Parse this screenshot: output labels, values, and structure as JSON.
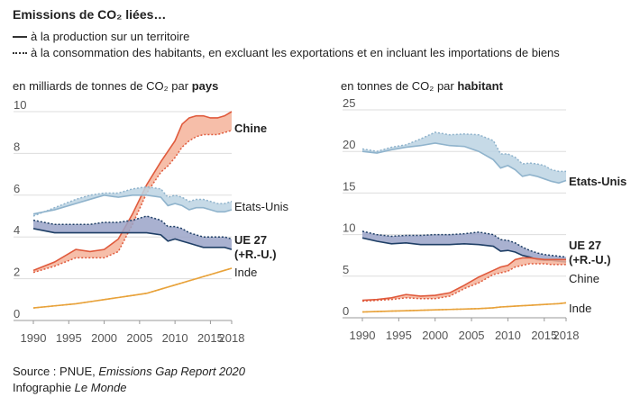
{
  "title": "Emissions de CO₂ liées…",
  "legend": {
    "solid": "à la production sur un territoire",
    "dotted": "à la consommation des habitants, en excluant les exportations et en incluant les importations de biens"
  },
  "source": {
    "prefix": "Source : PNUE, ",
    "report": "Emissions Gap Report 2020",
    "credit_prefix": "Infographie ",
    "credit_name": "Le Monde"
  },
  "colors": {
    "china": "#e05a3c",
    "china_fill": "#f4b39a",
    "usa": "#8fb3cc",
    "usa_fill": "#bcd3e3",
    "eu": "#1f3f66",
    "eu_fill": "#9aa3c8",
    "india": "#e8a23a",
    "india_fill": "#f5cf8e",
    "grid": "#dddddd",
    "axis": "#999999",
    "tick": "#555555"
  },
  "chart_data": [
    {
      "type": "area",
      "subtitle_prefix": "en milliards de tonnes de CO₂ par ",
      "subtitle_bold": "pays",
      "xlim": [
        1990,
        2018
      ],
      "ylim": [
        0,
        10
      ],
      "x_ticks": [
        "1990",
        "1995",
        "2000",
        "2005",
        "2010",
        "2015",
        "2018"
      ],
      "y_ticks": [
        "0",
        "2",
        "4",
        "6",
        "8",
        "10"
      ],
      "x": [
        1990,
        1993,
        1996,
        1998,
        2000,
        2002,
        2004,
        2006,
        2008,
        2009,
        2010,
        2011,
        2012,
        2013,
        2014,
        2015,
        2016,
        2017,
        2018
      ],
      "series": [
        {
          "key": "china",
          "name": "Chine",
          "bold": true,
          "production": [
            2.4,
            2.8,
            3.4,
            3.3,
            3.4,
            3.9,
            5.1,
            6.5,
            7.6,
            8.1,
            8.6,
            9.4,
            9.7,
            9.8,
            9.8,
            9.7,
            9.7,
            9.8,
            10.0
          ],
          "consumption": [
            2.3,
            2.6,
            3.0,
            3.0,
            3.0,
            3.3,
            4.6,
            6.1,
            7.1,
            7.4,
            7.8,
            8.3,
            8.6,
            8.8,
            8.9,
            8.9,
            8.9,
            9.0,
            9.1
          ]
        },
        {
          "key": "usa",
          "name": "Etats-Unis",
          "bold": false,
          "production": [
            5.1,
            5.3,
            5.6,
            5.8,
            6.0,
            5.9,
            6.0,
            6.0,
            5.9,
            5.5,
            5.6,
            5.5,
            5.3,
            5.4,
            5.4,
            5.3,
            5.2,
            5.2,
            5.3
          ],
          "consumption": [
            5.0,
            5.4,
            5.8,
            6.0,
            6.1,
            6.1,
            6.3,
            6.4,
            6.3,
            5.9,
            6.0,
            5.9,
            5.7,
            5.8,
            5.8,
            5.7,
            5.6,
            5.6,
            5.7
          ]
        },
        {
          "key": "eu",
          "name": "UE 27\n(+R.-U.)",
          "bold": true,
          "production": [
            4.4,
            4.2,
            4.2,
            4.2,
            4.2,
            4.2,
            4.2,
            4.2,
            4.1,
            3.8,
            3.9,
            3.8,
            3.7,
            3.6,
            3.5,
            3.5,
            3.5,
            3.5,
            3.4
          ],
          "consumption": [
            4.8,
            4.6,
            4.6,
            4.6,
            4.7,
            4.7,
            4.8,
            5.0,
            4.8,
            4.5,
            4.5,
            4.4,
            4.2,
            4.1,
            4.0,
            4.0,
            4.0,
            4.0,
            3.9
          ]
        },
        {
          "key": "india",
          "name": "Inde",
          "bold": false,
          "production": [
            0.6,
            0.7,
            0.8,
            0.9,
            1.0,
            1.1,
            1.2,
            1.3,
            1.5,
            1.6,
            1.7,
            1.8,
            1.9,
            2.0,
            2.1,
            2.2,
            2.3,
            2.4,
            2.5
          ],
          "consumption": [
            0.6,
            0.7,
            0.8,
            0.9,
            1.0,
            1.1,
            1.2,
            1.3,
            1.5,
            1.6,
            1.7,
            1.8,
            1.9,
            2.0,
            2.1,
            2.2,
            2.3,
            2.4,
            2.5
          ]
        }
      ]
    },
    {
      "type": "area",
      "subtitle_prefix": "en tonnes de CO₂ par ",
      "subtitle_bold": "habitant",
      "xlim": [
        1990,
        2018
      ],
      "ylim": [
        0,
        25
      ],
      "x_ticks": [
        "1990",
        "1995",
        "2000",
        "2005",
        "2010",
        "2015",
        "2018"
      ],
      "y_ticks": [
        "0",
        "5",
        "10",
        "15",
        "20",
        "25"
      ],
      "x": [
        1990,
        1992,
        1994,
        1996,
        1998,
        2000,
        2002,
        2004,
        2006,
        2008,
        2009,
        2010,
        2011,
        2012,
        2013,
        2014,
        2015,
        2016,
        2017,
        2018
      ],
      "series": [
        {
          "key": "usa",
          "name": "Etats-Unis",
          "bold": true,
          "production": [
            20.0,
            19.8,
            20.2,
            20.5,
            20.7,
            21.0,
            20.7,
            20.6,
            20.0,
            19.0,
            18.0,
            18.3,
            17.8,
            17.0,
            17.2,
            17.0,
            16.7,
            16.4,
            16.2,
            16.5
          ],
          "consumption": [
            20.3,
            20.0,
            20.5,
            20.8,
            21.5,
            22.3,
            22.0,
            22.1,
            22.0,
            21.3,
            19.7,
            19.7,
            19.3,
            18.5,
            18.6,
            18.5,
            18.3,
            17.8,
            17.6,
            17.6
          ]
        },
        {
          "key": "eu",
          "name": "UE 27\n(+R.-U.)",
          "bold": true,
          "production": [
            9.6,
            9.2,
            8.9,
            9.0,
            8.8,
            8.8,
            8.8,
            8.9,
            8.8,
            8.6,
            8.0,
            8.1,
            7.9,
            7.5,
            7.3,
            7.0,
            6.9,
            6.9,
            6.8,
            6.7
          ],
          "consumption": [
            10.4,
            10.0,
            9.8,
            9.9,
            9.9,
            10.0,
            10.0,
            10.1,
            10.3,
            10.0,
            9.4,
            9.3,
            9.0,
            8.5,
            8.1,
            7.8,
            7.6,
            7.5,
            7.4,
            7.3
          ]
        },
        {
          "key": "china",
          "name": "Chine",
          "bold": false,
          "production": [
            2.1,
            2.2,
            2.4,
            2.8,
            2.6,
            2.7,
            3.0,
            3.9,
            4.9,
            5.7,
            6.1,
            6.3,
            7.0,
            7.2,
            7.2,
            7.1,
            7.0,
            7.0,
            7.0,
            7.0
          ],
          "consumption": [
            2.0,
            2.1,
            2.2,
            2.4,
            2.3,
            2.3,
            2.6,
            3.5,
            4.2,
            5.2,
            5.4,
            5.6,
            6.1,
            6.3,
            6.5,
            6.5,
            6.5,
            6.4,
            6.4,
            6.4
          ]
        },
        {
          "key": "india",
          "name": "Inde",
          "bold": false,
          "production": [
            0.7,
            0.75,
            0.8,
            0.85,
            0.9,
            0.95,
            1.0,
            1.05,
            1.1,
            1.2,
            1.3,
            1.35,
            1.4,
            1.45,
            1.5,
            1.55,
            1.6,
            1.65,
            1.7,
            1.8
          ],
          "consumption": [
            0.7,
            0.75,
            0.8,
            0.85,
            0.9,
            0.95,
            1.0,
            1.05,
            1.1,
            1.2,
            1.3,
            1.35,
            1.4,
            1.45,
            1.5,
            1.55,
            1.6,
            1.65,
            1.7,
            1.8
          ]
        }
      ]
    }
  ]
}
